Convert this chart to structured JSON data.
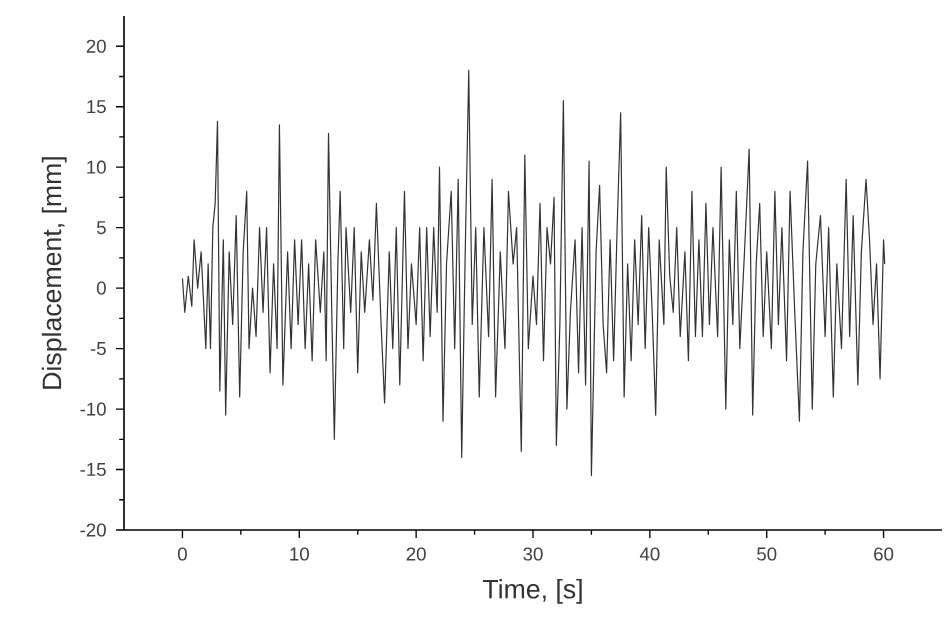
{
  "chart_data": {
    "type": "line",
    "xlabel": "Time, [s]",
    "ylabel": "Displacement, [mm]",
    "xlim": [
      -5,
      65
    ],
    "ylim": [
      -20,
      22.5
    ],
    "xticks": [
      0,
      10,
      20,
      30,
      40,
      50,
      60
    ],
    "yticks": [
      -20,
      -15,
      -10,
      -5,
      0,
      5,
      10,
      15,
      20
    ],
    "grid": false,
    "marker": "none",
    "line_style": "solid",
    "series": [
      {
        "color": "#333333",
        "x": [
          0,
          0.2,
          0.5,
          0.8,
          1,
          1.3,
          1.6,
          1.8,
          2,
          2.2,
          2.4,
          2.6,
          2.8,
          3.0,
          3.2,
          3.5,
          3.7,
          4,
          4.3,
          4.6,
          4.9,
          5.2,
          5.5,
          5.7,
          6,
          6.3,
          6.6,
          6.9,
          7.2,
          7.5,
          7.8,
          8.1,
          8.3,
          8.6,
          9,
          9.3,
          9.6,
          9.9,
          10.2,
          10.5,
          10.8,
          11.1,
          11.4,
          11.8,
          12.1,
          12.3,
          12.5,
          12.8,
          13,
          13.3,
          13.5,
          13.8,
          14,
          14.4,
          14.7,
          15,
          15.3,
          15.6,
          16,
          16.3,
          16.6,
          17,
          17.3,
          17.7,
          18,
          18.3,
          18.6,
          19,
          19.3,
          19.6,
          20,
          20.3,
          20.6,
          20.9,
          21.2,
          21.5,
          21.8,
          22,
          22.3,
          22.6,
          23,
          23.3,
          23.6,
          23.9,
          24.2,
          24.5,
          24.8,
          25.1,
          25.4,
          25.8,
          26.2,
          26.5,
          26.8,
          27.2,
          27.6,
          27.9,
          28.3,
          28.6,
          29,
          29.3,
          29.6,
          30,
          30.3,
          30.6,
          30.9,
          31.2,
          31.5,
          31.8,
          32,
          32.3,
          32.6,
          32.9,
          33.2,
          33.6,
          33.9,
          34.2,
          34.5,
          34.8,
          35,
          35.4,
          35.7,
          36,
          36.3,
          36.6,
          36.9,
          37.2,
          37.5,
          37.8,
          38.1,
          38.4,
          38.7,
          39,
          39.3,
          39.6,
          39.9,
          40.2,
          40.5,
          40.8,
          41.2,
          41.4,
          41.7,
          42,
          42.3,
          42.6,
          43,
          43.3,
          43.6,
          43.9,
          44.2,
          44.5,
          44.8,
          45.1,
          45.4,
          45.8,
          46.1,
          46.5,
          46.8,
          47.1,
          47.4,
          47.7,
          48.1,
          48.5,
          48.8,
          49.1,
          49.4,
          49.7,
          50,
          50.4,
          50.7,
          51,
          51.3,
          51.7,
          52,
          52.4,
          52.8,
          53.1,
          53.5,
          53.9,
          54.2,
          54.6,
          55,
          55.3,
          55.7,
          56,
          56.4,
          56.8,
          57.1,
          57.4,
          57.8,
          58.1,
          58.5,
          58.8,
          59.1,
          59.4,
          59.7,
          60,
          60.1
        ],
        "values": [
          0.8,
          -2,
          1,
          -1.5,
          4,
          0,
          3,
          -1,
          -5,
          2,
          -5,
          5,
          7,
          13.8,
          -8.5,
          4,
          -10.5,
          3,
          -3,
          6,
          -9,
          3,
          8,
          -5,
          0,
          -4,
          5,
          -2,
          5,
          -7,
          2,
          -5,
          13.5,
          -8,
          3,
          -5,
          4,
          -3,
          4,
          -5,
          2,
          -6,
          4,
          -2,
          3,
          -6,
          12.8,
          -3,
          -12.5,
          2,
          8,
          -5,
          5,
          -2,
          5,
          -7,
          3,
          -2,
          4,
          -1,
          7,
          -3,
          -9.5,
          3,
          -5,
          5,
          -8,
          8,
          -5,
          2,
          -3,
          5,
          -6,
          5,
          -4,
          5,
          -2,
          10,
          -11,
          2,
          8,
          -5,
          9,
          -14,
          3,
          18,
          -3,
          5,
          -9,
          5,
          -4,
          9,
          -9,
          3,
          -5,
          8,
          2,
          5,
          -13.5,
          11,
          -5,
          1,
          -3,
          7,
          -6,
          5,
          2,
          7.5,
          -13,
          -3,
          15.5,
          -10,
          -2,
          4,
          -7,
          5,
          -8,
          10.5,
          -15.5,
          3,
          8.5,
          -3,
          -7,
          4,
          -6,
          5,
          14.5,
          -9,
          2,
          -6,
          4,
          -3,
          6,
          -5,
          5,
          -2,
          -10.5,
          4,
          -3,
          10,
          1,
          -2,
          5,
          -4,
          3,
          -6,
          8,
          -4,
          4,
          -4,
          7,
          -3,
          5,
          -4,
          10,
          -10,
          4,
          -3,
          8,
          -5,
          3,
          11.5,
          -10.5,
          2,
          7,
          -4,
          3,
          -5,
          8,
          -3,
          5,
          -6,
          8,
          -2,
          -11,
          3,
          10.5,
          -10,
          2,
          6,
          -4,
          5,
          -9,
          2,
          -5,
          9,
          -4,
          6,
          -8,
          3,
          9,
          4,
          -3,
          2,
          -7.5,
          4,
          2
        ]
      }
    ]
  }
}
